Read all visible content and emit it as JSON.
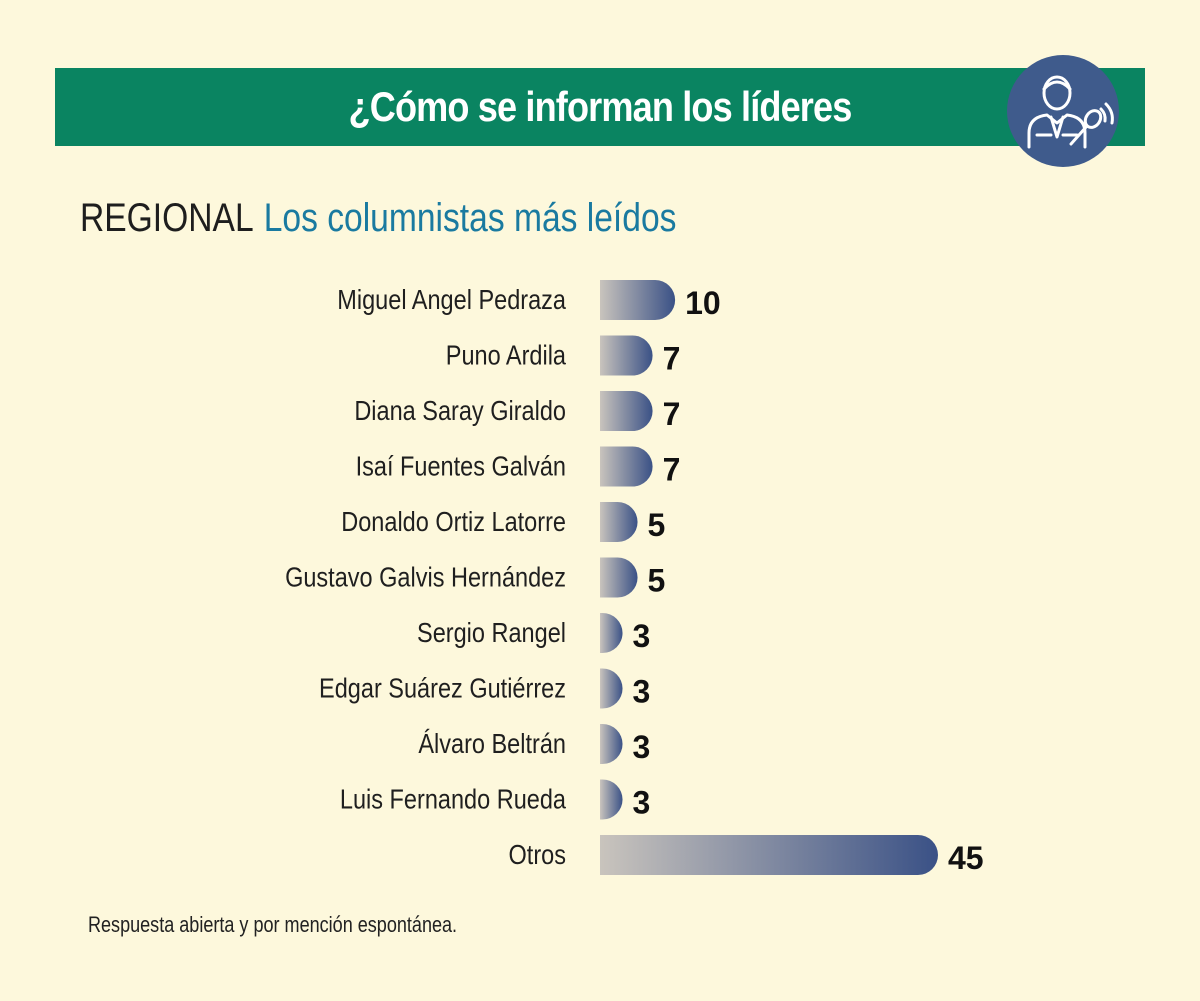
{
  "header": {
    "title": "¿Cómo se informan los líderes",
    "icon": "leader-microphone-icon"
  },
  "subtitle": {
    "region": "REGIONAL",
    "main": "Los columnistas más leídos"
  },
  "chart_data": {
    "type": "bar",
    "orientation": "horizontal",
    "title": "Los columnistas más leídos",
    "categories": [
      "Miguel Angel Pedraza",
      "Puno Ardila",
      "Diana Saray Giraldo",
      "Isaí Fuentes Galván",
      "Donaldo Ortiz Latorre",
      "Gustavo Galvis Hernández",
      "Sergio Rangel",
      "Edgar Suárez Gutiérrez",
      "Álvaro Beltrán",
      "Luis Fernando Rueda",
      "Otros"
    ],
    "values": [
      10,
      7,
      7,
      7,
      5,
      5,
      3,
      3,
      3,
      3,
      45
    ],
    "value_labels": [
      "10",
      "7",
      "7",
      "7",
      "5",
      "5",
      "3",
      "3",
      "3",
      "3",
      "45"
    ],
    "xlim": [
      0,
      45
    ],
    "colors": {
      "bar_start": "#c9c4bd",
      "bar_end": "#3a5186"
    }
  },
  "footnote": "Respuesta abierta y por mención espontánea.",
  "colors": {
    "background": "#fdf8dc",
    "banner": "#0a8461",
    "avatar": "#3f5b8c",
    "accent": "#1a7aa0"
  }
}
